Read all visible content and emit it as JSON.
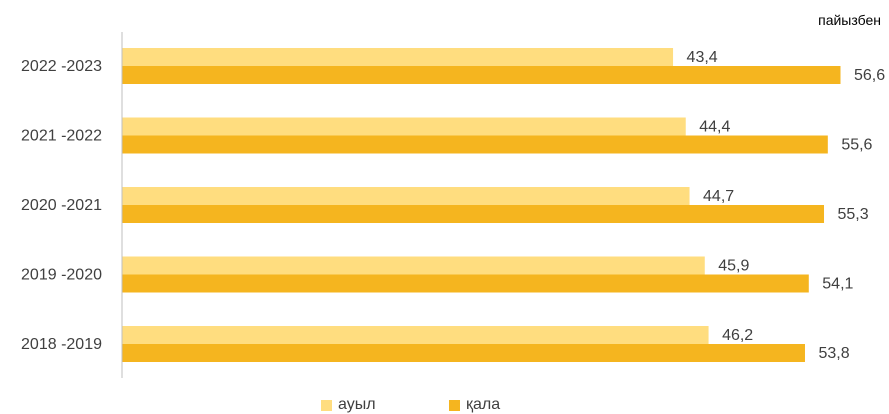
{
  "unit_label": "пайызбен",
  "colors": {
    "auyl": "#FFDD7F",
    "kala": "#F5B51F",
    "axis": "#BFBFBF",
    "text": "#404040"
  },
  "chart_data": {
    "type": "bar",
    "orientation": "horizontal",
    "categories": [
      "2022 -2023",
      "2021 -2022",
      "2020 -2021",
      "2019 -2020",
      "2018 -2019"
    ],
    "series": [
      {
        "name": "ауыл",
        "values": [
          43.4,
          44.4,
          44.7,
          45.9,
          46.2
        ],
        "value_labels": [
          "43,4",
          "44,4",
          "44,7",
          "45,9",
          "46,2"
        ]
      },
      {
        "name": "қала",
        "values": [
          56.6,
          55.6,
          55.3,
          54.1,
          53.8
        ],
        "value_labels": [
          "56,6",
          "55,6",
          "55,3",
          "54,1",
          "53,8"
        ]
      }
    ],
    "xlim": [
      0,
      56.6
    ],
    "grid": false,
    "legend": "bottom"
  }
}
